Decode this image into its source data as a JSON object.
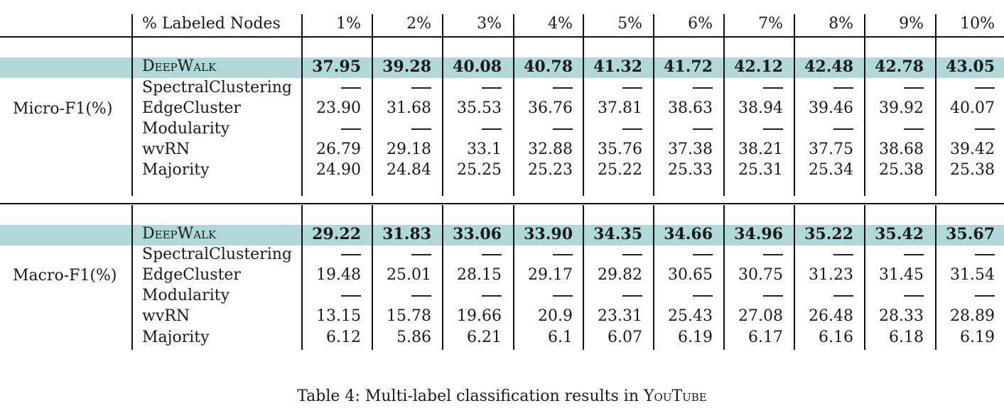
{
  "header": {
    "label": "% Labeled Nodes",
    "columns": [
      "1%",
      "2%",
      "3%",
      "4%",
      "5%",
      "6%",
      "7%",
      "8%",
      "9%",
      "10%"
    ]
  },
  "groups": [
    {
      "name": "Micro-F1(%)",
      "rows": [
        {
          "method": "DeepWalk",
          "values": [
            "37.95",
            "39.28",
            "40.08",
            "40.78",
            "41.32",
            "41.72",
            "42.12",
            "42.48",
            "42.78",
            "43.05"
          ]
        },
        {
          "method": "SpectralClustering",
          "values": [
            "—",
            "—",
            "—",
            "—",
            "—",
            "—",
            "—",
            "—",
            "—",
            "—"
          ]
        },
        {
          "method": "EdgeCluster",
          "values": [
            "23.90",
            "31.68",
            "35.53",
            "36.76",
            "37.81",
            "38.63",
            "38.94",
            "39.46",
            "39.92",
            "40.07"
          ]
        },
        {
          "method": "Modularity",
          "values": [
            "—",
            "—",
            "—",
            "—",
            "—",
            "—",
            "—",
            "—",
            "—",
            "—"
          ]
        },
        {
          "method": "wvRN",
          "values": [
            "26.79",
            "29.18",
            "33.1",
            "32.88",
            "35.76",
            "37.38",
            "38.21",
            "37.75",
            "38.68",
            "39.42"
          ]
        },
        {
          "method": "Majority",
          "values": [
            "24.90",
            "24.84",
            "25.25",
            "25.23",
            "25.22",
            "25.33",
            "25.31",
            "25.34",
            "25.38",
            "25.38"
          ]
        }
      ]
    },
    {
      "name": "Macro-F1(%)",
      "rows": [
        {
          "method": "DeepWalk",
          "values": [
            "29.22",
            "31.83",
            "33.06",
            "33.90",
            "34.35",
            "34.66",
            "34.96",
            "35.22",
            "35.42",
            "35.67"
          ]
        },
        {
          "method": "SpectralClustering",
          "values": [
            "—",
            "—",
            "—",
            "—",
            "—",
            "—",
            "—",
            "—",
            "—",
            "—"
          ]
        },
        {
          "method": "EdgeCluster",
          "values": [
            "19.48",
            "25.01",
            "28.15",
            "29.17",
            "29.82",
            "30.65",
            "30.75",
            "31.23",
            "31.45",
            "31.54"
          ]
        },
        {
          "method": "Modularity",
          "values": [
            "—",
            "—",
            "—",
            "—",
            "—",
            "—",
            "—",
            "—",
            "—",
            "—"
          ]
        },
        {
          "method": "wvRN",
          "values": [
            "13.15",
            "15.78",
            "19.66",
            "20.9",
            "23.31",
            "25.43",
            "27.08",
            "26.48",
            "28.33",
            "28.89"
          ]
        },
        {
          "method": "Majority",
          "values": [
            "6.12",
            "5.86",
            "6.21",
            "6.1",
            "6.07",
            "6.19",
            "6.17",
            "6.16",
            "6.18",
            "6.19"
          ]
        }
      ]
    }
  ],
  "caption": {
    "prefix": "Table 4: Multi-label classification results in ",
    "dataset": "YouTube"
  },
  "colors": {
    "highlight": "#b0d8d8",
    "rule": "#111111"
  }
}
